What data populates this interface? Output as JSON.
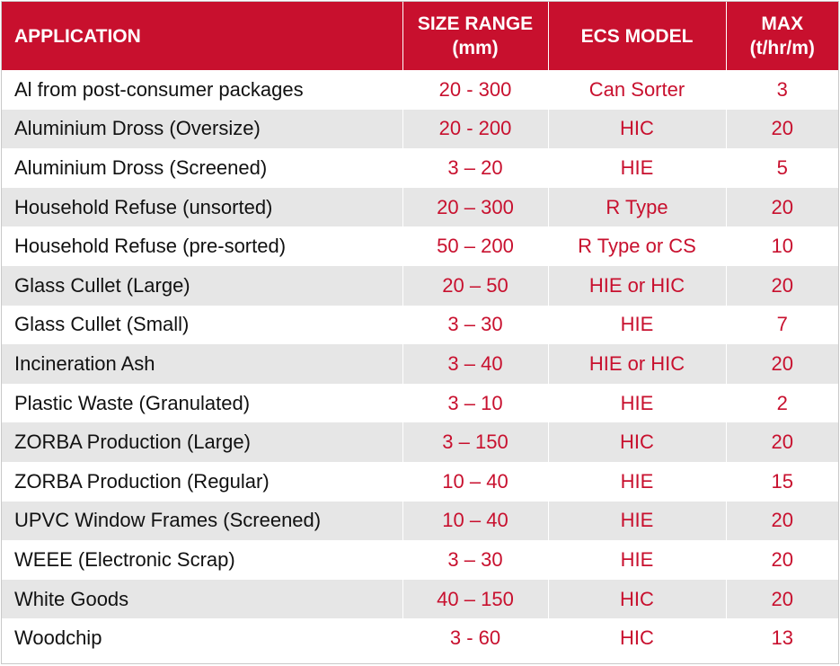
{
  "colors": {
    "header_bg": "#c8102e",
    "header_text": "#ffffff",
    "value_text": "#c8102e",
    "app_text": "#111111",
    "stripe": "#e6e6e6"
  },
  "table": {
    "headers": {
      "application": "APPLICATION",
      "size_range_line1": "SIZE RANGE",
      "size_range_line2": "(mm)",
      "ecs_model": "ECS MODEL",
      "max_line1": "MAX",
      "max_line2": "(t/hr/m)"
    },
    "rows": [
      {
        "application": "Al from post-consumer packages",
        "size_range": "20 - 300",
        "ecs_model": "Can Sorter",
        "max": "3"
      },
      {
        "application": "Aluminium Dross (Oversize)",
        "size_range": "20 - 200",
        "ecs_model": "HIC",
        "max": "20"
      },
      {
        "application": "Aluminium Dross (Screened)",
        "size_range": "3 – 20",
        "ecs_model": "HIE",
        "max": "5"
      },
      {
        "application": "Household Refuse (unsorted)",
        "size_range": "20 – 300",
        "ecs_model": "R Type",
        "max": "20"
      },
      {
        "application": "Household Refuse (pre-sorted)",
        "size_range": "50 – 200",
        "ecs_model": "R Type or CS",
        "max": "10"
      },
      {
        "application": "Glass Cullet (Large)",
        "size_range": "20 – 50",
        "ecs_model": "HIE or HIC",
        "max": "20"
      },
      {
        "application": "Glass Cullet (Small)",
        "size_range": "3 – 30",
        "ecs_model": "HIE",
        "max": "7"
      },
      {
        "application": "Incineration Ash",
        "size_range": "3 – 40",
        "ecs_model": "HIE or HIC",
        "max": "20"
      },
      {
        "application": "Plastic Waste (Granulated)",
        "size_range": "3 – 10",
        "ecs_model": "HIE",
        "max": "2"
      },
      {
        "application": "ZORBA Production (Large)",
        "size_range": "3 – 150",
        "ecs_model": "HIC",
        "max": "20"
      },
      {
        "application": "ZORBA Production (Regular)",
        "size_range": "10 – 40",
        "ecs_model": "HIE",
        "max": "15"
      },
      {
        "application": "UPVC Window Frames (Screened)",
        "size_range": "10 – 40",
        "ecs_model": "HIE",
        "max": "20"
      },
      {
        "application": "WEEE (Electronic Scrap)",
        "size_range": "3 – 30",
        "ecs_model": "HIE",
        "max": "20"
      },
      {
        "application": "White Goods",
        "size_range": "40 – 150",
        "ecs_model": "HIC",
        "max": "20"
      },
      {
        "application": "Woodchip",
        "size_range": "3 - 60",
        "ecs_model": "HIC",
        "max": "13"
      }
    ]
  }
}
